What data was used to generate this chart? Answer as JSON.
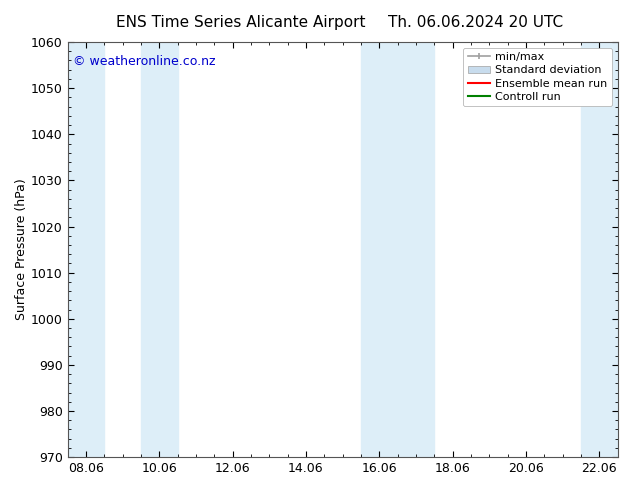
{
  "title_left": "ENS Time Series Alicante Airport",
  "title_right": "Th. 06.06.2024 20 UTC",
  "ylabel": "Surface Pressure (hPa)",
  "ylim": [
    970,
    1060
  ],
  "yticks": [
    970,
    980,
    990,
    1000,
    1010,
    1020,
    1030,
    1040,
    1050,
    1060
  ],
  "xtick_positions": [
    0,
    2,
    4,
    6,
    8,
    10,
    12,
    14
  ],
  "xtick_labels": [
    "08.06",
    "10.06",
    "12.06",
    "14.06",
    "16.06",
    "18.06",
    "20.06",
    "22.06"
  ],
  "xlim": [
    -0.5,
    14.5
  ],
  "shaded_bands": [
    {
      "x_start": -0.5,
      "x_end": 0.5,
      "color": "#ddeef8"
    },
    {
      "x_start": 1.5,
      "x_end": 2.5,
      "color": "#ddeef8"
    },
    {
      "x_start": 7.5,
      "x_end": 9.5,
      "color": "#ddeef8"
    },
    {
      "x_start": 13.5,
      "x_end": 14.5,
      "color": "#ddeef8"
    }
  ],
  "watermark": "© weatheronline.co.nz",
  "watermark_color": "#0000cc",
  "background_color": "#ffffff",
  "plot_bg_color": "#ffffff",
  "minmax_color": "#a0a0a0",
  "std_color": "#c8dced",
  "mean_color": "#ff0000",
  "control_color": "#008000",
  "legend_labels": [
    "min/max",
    "Standard deviation",
    "Ensemble mean run",
    "Controll run"
  ],
  "title_fontsize": 11,
  "tick_fontsize": 9,
  "ylabel_fontsize": 9,
  "watermark_fontsize": 9,
  "legend_fontsize": 8
}
